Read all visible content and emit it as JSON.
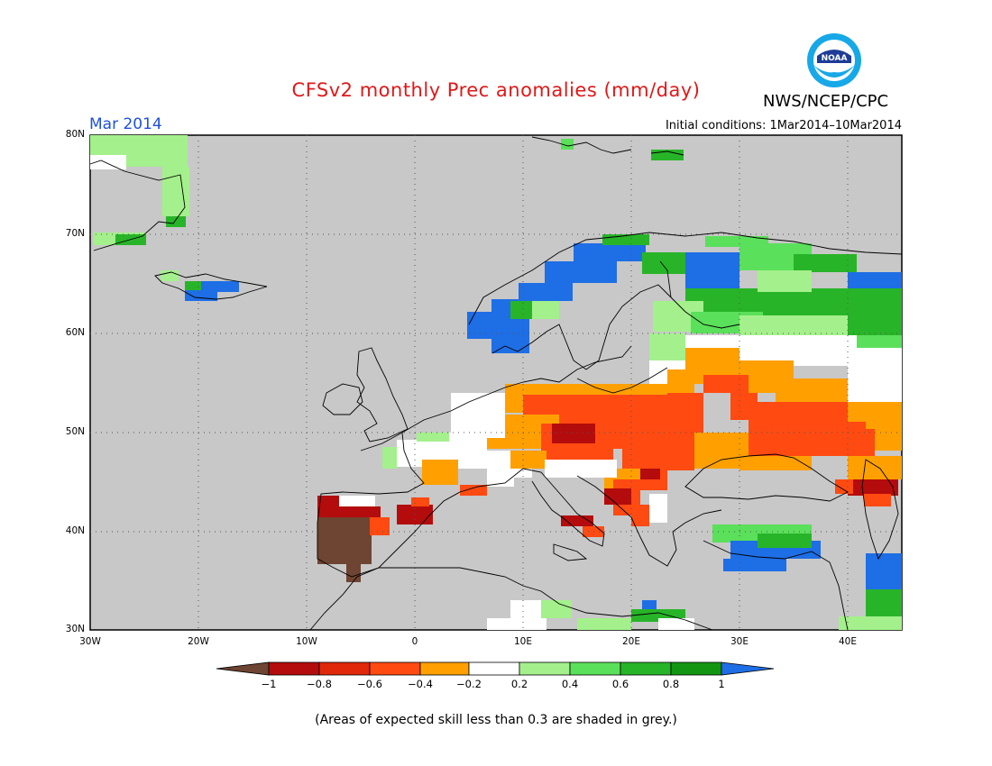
{
  "header": {
    "title": "CFSv2 monthly Prec anomalies (mm/day)",
    "org": "NWS/NCEP/CPC",
    "logo_text": "NOAA",
    "month": "Mar 2014",
    "initial_conditions": "Initial conditions: 1Mar2014–10Mar2014"
  },
  "map": {
    "lat_labels": [
      "80N",
      "70N",
      "60N",
      "50N",
      "40N",
      "30N"
    ],
    "lon_labels": [
      "30W",
      "20W",
      "10W",
      "0",
      "10E",
      "20E",
      "30E",
      "40E"
    ],
    "background_color": "#c8c8c8"
  },
  "colorbar": {
    "ticks": [
      "−1",
      "−0.8",
      "−0.6",
      "−0.4",
      "−0.2",
      "0.2",
      "0.4",
      "0.6",
      "0.8",
      "1"
    ],
    "colors": [
      "#6e4432",
      "#b40c0c",
      "#e0280a",
      "#ff4a12",
      "#ffa000",
      "#ffffff",
      "#a4f08c",
      "#5ae05a",
      "#28b428",
      "#129612",
      "#1e6ee6"
    ]
  },
  "footnote": "(Areas of expected skill less than 0.3 are shaded in grey.)"
}
